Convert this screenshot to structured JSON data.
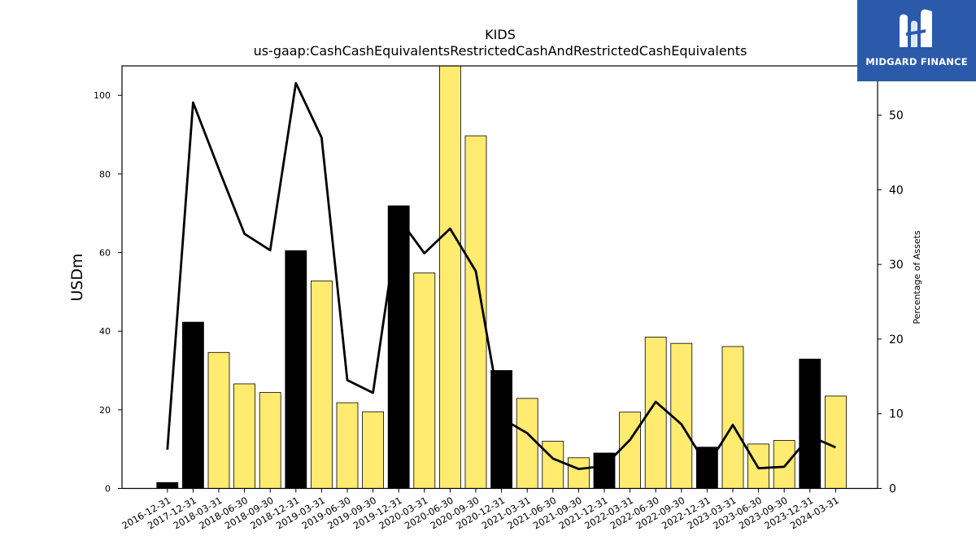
{
  "brand": {
    "name": "MIDGARD FINANCE",
    "logo_icon": "midgard-m-logo-icon",
    "background": "#2b5aab"
  },
  "chart_data": {
    "type": "bar",
    "title": "KIDS",
    "subtitle": "us-gaap:CashCashEquivalentsRestrictedCashAndRestrictedCashEquivalents",
    "ylabel": "USDm",
    "y2label": "Percentage of Assets",
    "ylim": [
      0,
      107.5
    ],
    "y2lim": [
      0,
      56.6
    ],
    "yticks": [
      0,
      20,
      40,
      60,
      80,
      100
    ],
    "y2ticks": [
      0,
      10,
      20,
      30,
      40,
      50
    ],
    "grid": false,
    "colors": {
      "annual": "#000000",
      "quarterly": "#ffeb70",
      "line": "#000000"
    },
    "categories": [
      "2016-12-31",
      "2017-12-31",
      "2018-03-31",
      "2018-06-30",
      "2018-09-30",
      "2018-12-31",
      "2019-03-31",
      "2019-06-30",
      "2019-09-30",
      "2019-12-31",
      "2020-03-31",
      "2020-06-30",
      "2020-09-30",
      "2020-12-31",
      "2021-03-31",
      "2021-06-30",
      "2021-09-30",
      "2021-12-31",
      "2022-03-31",
      "2022-06-30",
      "2022-09-30",
      "2022-12-31",
      "2023-03-31",
      "2023-06-30",
      "2023-09-30",
      "2023-12-31",
      "2024-03-31"
    ],
    "series": [
      {
        "kind": "bar",
        "values": [
          1.5,
          42.3,
          34.6,
          26.6,
          24.4,
          60.5,
          52.8,
          21.8,
          19.5,
          71.9,
          54.8,
          107.5,
          89.7,
          30.0,
          22.9,
          12.0,
          7.8,
          9.0,
          19.4,
          38.5,
          36.9,
          10.5,
          36.1,
          11.3,
          12.2,
          32.9,
          23.5
        ],
        "annual": [
          true,
          true,
          false,
          false,
          false,
          true,
          false,
          false,
          false,
          true,
          false,
          false,
          false,
          true,
          false,
          false,
          false,
          true,
          false,
          false,
          false,
          true,
          false,
          false,
          false,
          true,
          false
        ]
      },
      {
        "kind": "line",
        "axis": "right",
        "values": [
          5.2,
          51.7,
          42.8,
          34.1,
          31.9,
          54.3,
          47.0,
          14.5,
          12.8,
          36.2,
          31.5,
          34.8,
          29.1,
          9.4,
          7.4,
          4.0,
          2.6,
          3.0,
          6.5,
          11.6,
          8.6,
          3.0,
          8.5,
          2.7,
          2.9,
          7.0,
          5.5
        ]
      }
    ]
  }
}
